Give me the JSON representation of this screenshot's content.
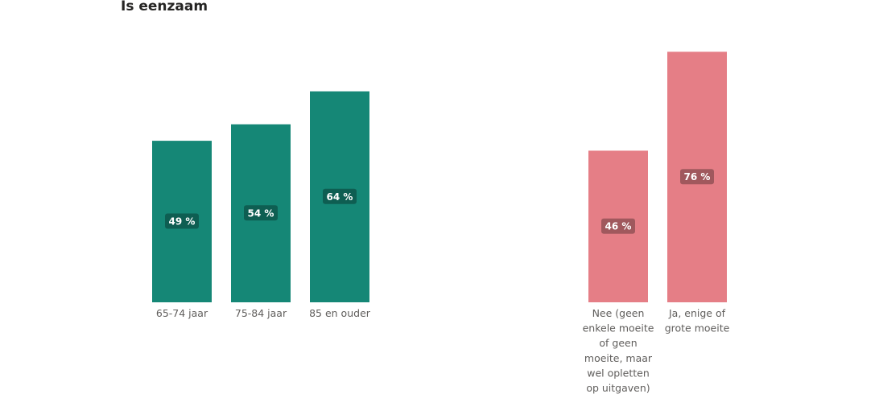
{
  "chart_data": {
    "type": "bar",
    "title": "Is eenzaam",
    "xlabel": "",
    "ylabel": "",
    "ylim": [
      0,
      80
    ],
    "grid": false,
    "legend": "none",
    "groups": [
      {
        "color": "#158776",
        "categories": [
          "65-74 jaar",
          "75-84 jaar",
          "85 en ouder"
        ],
        "category_lines": [
          [
            "65-74 jaar"
          ],
          [
            "75-84 jaar"
          ],
          [
            "85 en ouder"
          ]
        ],
        "values": [
          49,
          54,
          64
        ],
        "data_labels": [
          "49 %",
          "54 %",
          "64 %"
        ]
      },
      {
        "color": "#e57e86",
        "categories": [
          "Nee (geen enkele moeite of geen moeite, maar wel opletten op uitgaven)",
          "Ja, enige of grote moeite"
        ],
        "category_lines": [
          [
            "Nee (geen",
            "enkele moeite",
            "of geen",
            "moeite, maar",
            "wel opletten",
            "op uitgaven)"
          ],
          [
            "Ja, enige of",
            "grote moeite"
          ]
        ],
        "values": [
          46,
          76
        ],
        "data_labels": [
          "46 %",
          "76 %"
        ]
      }
    ]
  }
}
